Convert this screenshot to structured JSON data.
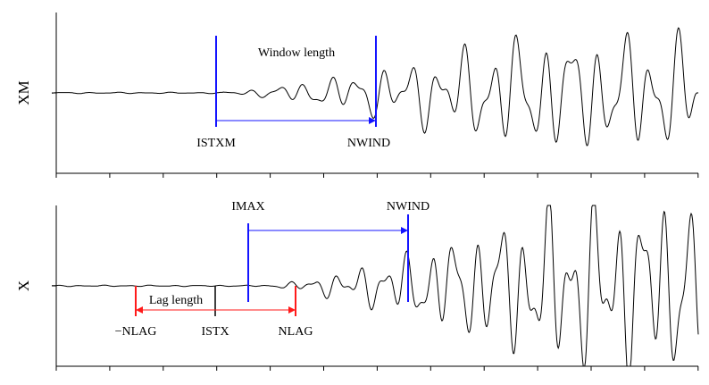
{
  "panels": [
    {
      "ylabel": "XM",
      "labels": {
        "window": "Window length",
        "istxm": "ISTXM",
        "nwind": "NWIND"
      }
    },
    {
      "ylabel": "X",
      "labels": {
        "imax": "IMAX",
        "nwind": "NWIND",
        "lag": "Lag length",
        "neg_nlag": "−NLAG",
        "istx": "ISTX",
        "nlag": "NLAG"
      }
    }
  ],
  "colors": {
    "window_marker": "#1414ff",
    "lag_marker": "#ff1a1a",
    "signal": "#000000"
  }
}
